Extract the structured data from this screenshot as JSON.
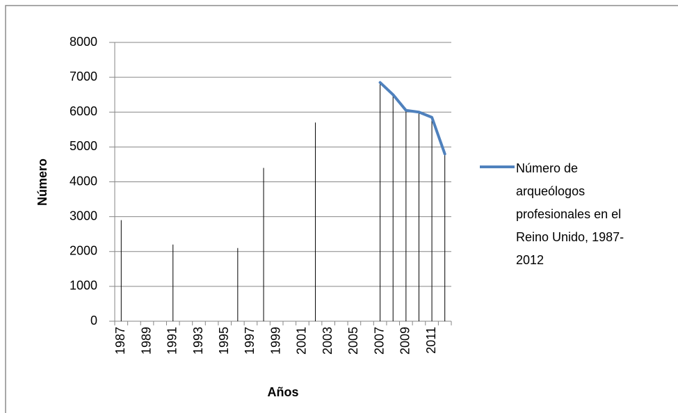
{
  "chart_data": {
    "type": "line",
    "x_label": "Años",
    "y_label": "Número",
    "categories": [
      "1987",
      null,
      "1989",
      null,
      "1991",
      null,
      "1993",
      null,
      "1995",
      null,
      "1997",
      null,
      "1999",
      null,
      "2001",
      null,
      "2003",
      null,
      "2005",
      null,
      "2007",
      null,
      "2009",
      null,
      "2011",
      null
    ],
    "series": [
      {
        "name": "Número de arqueólogos profesionales en el Reino Unido, 1987-2012",
        "color": "#4f81bd",
        "values": [
          2900,
          null,
          null,
          null,
          2200,
          null,
          null,
          null,
          null,
          2100,
          null,
          4400,
          null,
          null,
          null,
          5700,
          null,
          null,
          null,
          null,
          6850,
          6500,
          6050,
          6000,
          5850,
          4800
        ]
      }
    ],
    "ylim": [
      0,
      8000
    ],
    "yticks": [
      0,
      1000,
      2000,
      3000,
      4000,
      5000,
      6000,
      7000,
      8000
    ],
    "grid": true,
    "drop_lines": true,
    "legend": "right"
  }
}
